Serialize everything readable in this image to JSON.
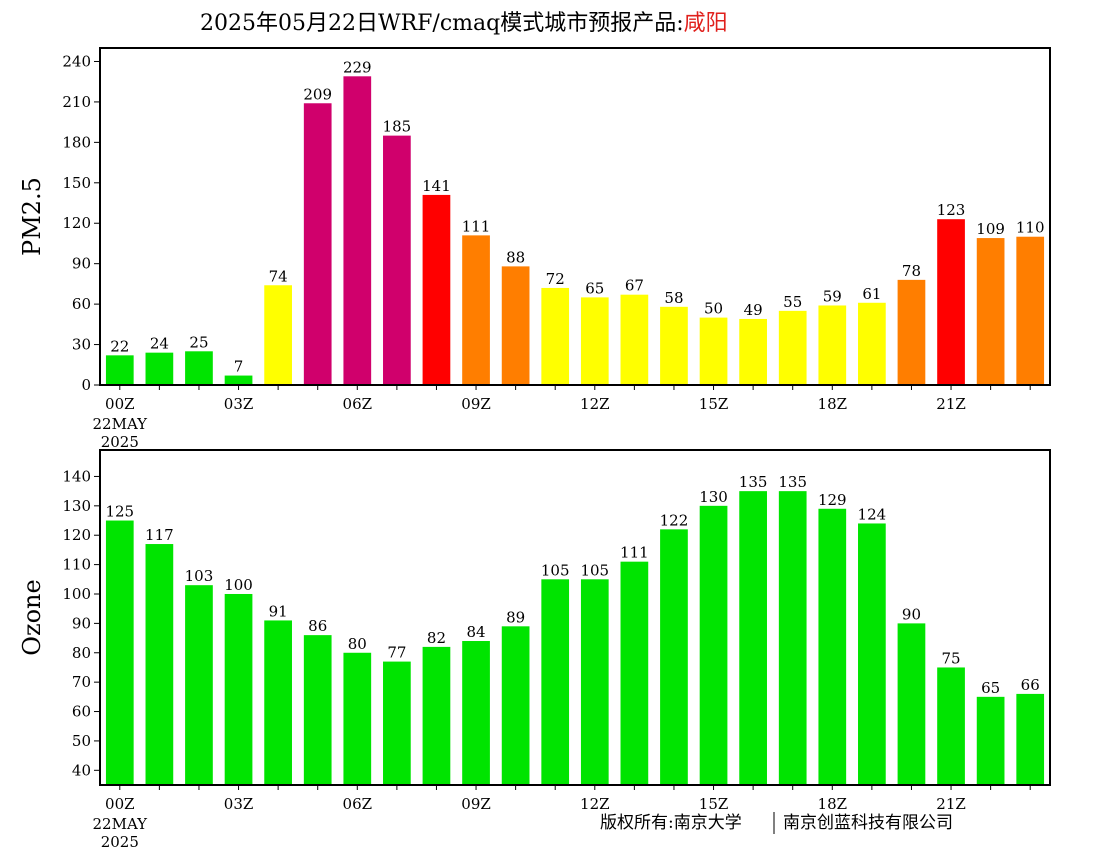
{
  "title": {
    "main": "2025年05月22日WRF/cmaq模式城市预报产品:",
    "city": "咸阳",
    "city_color": "#e0201c"
  },
  "credit": {
    "owner": "版权所有:南京大学",
    "company": "南京创蓝科技有限公司"
  },
  "chart_data": [
    {
      "type": "bar",
      "ylabel": "PM2.5",
      "ylim": [
        0,
        250
      ],
      "yticks": [
        0,
        30,
        60,
        90,
        120,
        150,
        180,
        210,
        240
      ],
      "xtick_labels": [
        {
          "hour": 0,
          "label": "00Z",
          "sub": [
            "22MAY",
            "2025"
          ]
        },
        {
          "hour": 3,
          "label": "03Z"
        },
        {
          "hour": 6,
          "label": "06Z"
        },
        {
          "hour": 9,
          "label": "09Z"
        },
        {
          "hour": 12,
          "label": "12Z"
        },
        {
          "hour": 15,
          "label": "15Z"
        },
        {
          "hour": 18,
          "label": "18Z"
        },
        {
          "hour": 21,
          "label": "21Z"
        }
      ],
      "values": [
        22,
        24,
        25,
        7,
        74,
        209,
        229,
        185,
        141,
        111,
        88,
        72,
        65,
        67,
        58,
        50,
        49,
        55,
        59,
        61,
        78,
        123,
        109,
        110
      ],
      "colors": [
        "#00e400",
        "#00e400",
        "#00e400",
        "#00e400",
        "#ffff00",
        "#d0006c",
        "#d0006c",
        "#d0006c",
        "#ff0000",
        "#ff7e00",
        "#ff7e00",
        "#ffff00",
        "#ffff00",
        "#ffff00",
        "#ffff00",
        "#ffff00",
        "#ffff00",
        "#ffff00",
        "#ffff00",
        "#ffff00",
        "#ff7e00",
        "#ff0000",
        "#ff7e00",
        "#ff7e00"
      ],
      "grid": false
    },
    {
      "type": "bar",
      "ylabel": "Ozone",
      "ylim": [
        35,
        149
      ],
      "yticks": [
        40,
        50,
        60,
        70,
        80,
        90,
        100,
        110,
        120,
        130,
        140
      ],
      "xtick_labels": [
        {
          "hour": 0,
          "label": "00Z",
          "sub": [
            "22MAY",
            "2025"
          ]
        },
        {
          "hour": 3,
          "label": "03Z"
        },
        {
          "hour": 6,
          "label": "06Z"
        },
        {
          "hour": 9,
          "label": "09Z"
        },
        {
          "hour": 12,
          "label": "12Z"
        },
        {
          "hour": 15,
          "label": "15Z"
        },
        {
          "hour": 18,
          "label": "18Z"
        },
        {
          "hour": 21,
          "label": "21Z"
        }
      ],
      "values": [
        125,
        117,
        103,
        100,
        91,
        86,
        80,
        77,
        82,
        84,
        89,
        105,
        105,
        111,
        122,
        130,
        135,
        135,
        129,
        124,
        90,
        75,
        65,
        66
      ],
      "colors": [
        "#00e400",
        "#00e400",
        "#00e400",
        "#00e400",
        "#00e400",
        "#00e400",
        "#00e400",
        "#00e400",
        "#00e400",
        "#00e400",
        "#00e400",
        "#00e400",
        "#00e400",
        "#00e400",
        "#00e400",
        "#00e400",
        "#00e400",
        "#00e400",
        "#00e400",
        "#00e400",
        "#00e400",
        "#00e400",
        "#00e400",
        "#00e400"
      ],
      "grid": false
    }
  ]
}
